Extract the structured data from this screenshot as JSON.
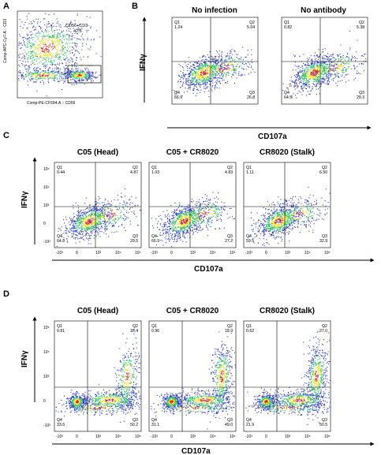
{
  "panel_a": {
    "letter": "A",
    "gate_label": "CD56+CD3-",
    "gate_value": "42.5",
    "y_axis": "Comp-APC-Cy7-A :: CD3",
    "x_axis": "Comp-PE-CF594-A :: CD56"
  },
  "panel_b": {
    "letter": "B",
    "y_title": "IFNγ",
    "x_title": "CD107a",
    "plots": [
      {
        "title": "No infection",
        "Q1": "1.24",
        "Q2": "5.04",
        "Q3": "26.8",
        "Q4": "66.9"
      },
      {
        "title": "No antibody",
        "Q1": "0.82",
        "Q2": "5.38",
        "Q3": "29.3",
        "Q4": "64.5"
      }
    ]
  },
  "panel_c": {
    "letter": "C",
    "y_title": "IFNγ",
    "x_title": "CD107a",
    "plots": [
      {
        "title": "C05 (Head)",
        "Q1": "0.44",
        "Q2": "4.87",
        "Q3": "29.5",
        "Q4": "64.8"
      },
      {
        "title": "C05 + CR8020",
        "Q1": "1.03",
        "Q2": "4.83",
        "Q3": "27.2",
        "Q4": "66.9"
      },
      {
        "title": "CR8020 (Stalk)",
        "Q1": "1.11",
        "Q2": "6.50",
        "Q3": "32.9",
        "Q4": "59.5"
      }
    ]
  },
  "panel_d": {
    "letter": "D",
    "y_title": "IFNγ",
    "x_title": "CD107a",
    "plots": [
      {
        "title": "C05 (Head)",
        "Q1": "0.81",
        "Q2": "15.4",
        "Q3": "50.2",
        "Q4": "33.6"
      },
      {
        "title": "C05 + CR8020",
        "Q1": "0.96",
        "Q2": "18.9",
        "Q3": "49.0",
        "Q4": "31.1"
      },
      {
        "title": "CR8020 (Stalk)",
        "Q1": "0.62",
        "Q2": "27.0",
        "Q3": "50.5",
        "Q4": "21.9"
      }
    ]
  },
  "axis_ticks": {
    "y": [
      "10⁵",
      "10⁴",
      "10³",
      "0",
      "-10³"
    ],
    "x": [
      "-10³",
      "0",
      "10³",
      "10⁴",
      "10⁵"
    ]
  },
  "colors": {
    "dense": "#d62020",
    "mid": "#f0e020",
    "low": "#30c060",
    "sparse": "#2a38c8"
  }
}
